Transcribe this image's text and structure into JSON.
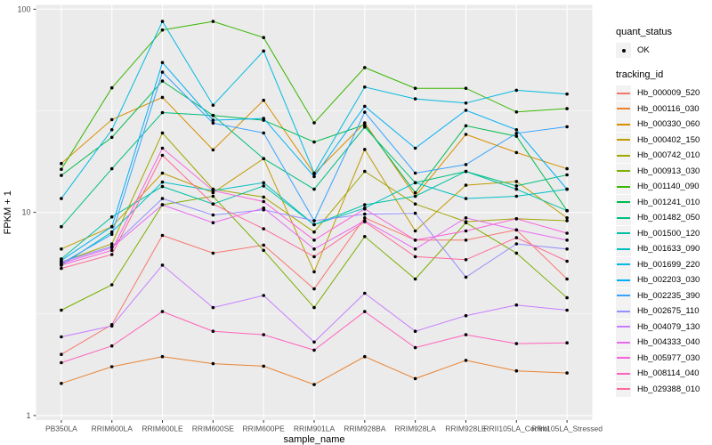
{
  "figure": {
    "background": "#FFFFFF",
    "panel_background": "#EBEBEB",
    "gridline_color": "#FFFFFF",
    "tick_label_color": "#4D4D4D",
    "axis_title_color": "#000000",
    "point_color": "#000000"
  },
  "legend": {
    "quant_status_title": "quant_status",
    "quant_status_items": [
      "OK"
    ],
    "tracking_id_title": "tracking_id"
  },
  "chart_data": {
    "type": "line",
    "title": "",
    "xlabel": "sample_name",
    "ylabel": "FPKM + 1",
    "y_scale": "log10",
    "y_ticks": [
      1,
      10,
      100
    ],
    "y_minor": [
      3.1623,
      31.623
    ],
    "ylim": [
      0.95,
      105
    ],
    "grid": "major+minor",
    "legend_position": "right",
    "point_shape": "filled-circle",
    "categories": [
      "PB350LA",
      "RRIM600LA",
      "RRIM600LE",
      "RRIM600SE",
      "RRIM600PE",
      "RRIM901LA",
      "RRIM928BA",
      "RRIM928LA",
      "RRIM928LE",
      "RRII105LA_Control",
      "RRII105LA_Stressed"
    ],
    "series": [
      {
        "name": "Hb_000009_520",
        "color": "#F8766D",
        "quant_status": "OK",
        "values": [
          2.0,
          2.8,
          7.7,
          6.3,
          6.9,
          4.2,
          9.4,
          7.3,
          7.3,
          8.2,
          4.7
        ]
      },
      {
        "name": "Hb_000116_030",
        "color": "#EA8331",
        "quant_status": "OK",
        "values": [
          1.44,
          1.74,
          1.95,
          1.8,
          1.75,
          1.42,
          1.95,
          1.52,
          1.87,
          1.66,
          1.62
        ]
      },
      {
        "name": "Hb_000330_060",
        "color": "#D89000",
        "quant_status": "OK",
        "values": [
          17.4,
          28.6,
          36.8,
          20.3,
          35.6,
          15.5,
          27.6,
          12.0,
          24.2,
          19.7,
          16.4
        ]
      },
      {
        "name": "Hb_000402_150",
        "color": "#C09B00",
        "quant_status": "OK",
        "values": [
          6.6,
          8.5,
          15.6,
          12.5,
          18.4,
          5.1,
          20.4,
          8.1,
          13.6,
          14.2,
          9.4
        ]
      },
      {
        "name": "Hb_000742_010",
        "color": "#A3A500",
        "quant_status": "OK",
        "values": [
          5.7,
          7.0,
          24.6,
          13.0,
          11.9,
          8.0,
          15.9,
          11.0,
          9.0,
          9.3,
          9.1
        ]
      },
      {
        "name": "Hb_000913_030",
        "color": "#7CAE00",
        "quant_status": "OK",
        "values": [
          3.3,
          4.4,
          10.9,
          12.0,
          6.5,
          3.4,
          7.6,
          4.7,
          8.9,
          6.3,
          3.8
        ]
      },
      {
        "name": "Hb_001140_090",
        "color": "#39B600",
        "quant_status": "OK",
        "values": [
          16.3,
          41.0,
          79.0,
          87.0,
          72.5,
          27.6,
          51.6,
          40.8,
          40.8,
          31.2,
          32.4
        ]
      },
      {
        "name": "Hb_001241_010",
        "color": "#00BB4E",
        "quant_status": "OK",
        "values": [
          15.2,
          23.4,
          44.3,
          30.0,
          28.4,
          22.2,
          27.0,
          12.5,
          26.7,
          23.7,
          10.2
        ]
      },
      {
        "name": "Hb_001482_050",
        "color": "#00BF7D",
        "quant_status": "OK",
        "values": [
          8.5,
          16.4,
          31.0,
          30.0,
          18.4,
          13.0,
          26.3,
          14.0,
          15.9,
          13.5,
          15.3
        ]
      },
      {
        "name": "Hb_001500_120",
        "color": "#00C1A3",
        "quant_status": "OK",
        "values": [
          5.9,
          9.5,
          13.4,
          11.0,
          13.5,
          8.7,
          10.9,
          12.0,
          15.9,
          13.0,
          10.2
        ]
      },
      {
        "name": "Hb_001633_090",
        "color": "#00BFC4",
        "quant_status": "OK",
        "values": [
          5.5,
          8.0,
          14.1,
          12.8,
          14.0,
          8.7,
          10.5,
          14.0,
          11.7,
          12.0,
          13.0
        ]
      },
      {
        "name": "Hb_001699_220",
        "color": "#00BAE0",
        "quant_status": "OK",
        "values": [
          11.7,
          25.5,
          87.0,
          33.7,
          62.3,
          15.6,
          41.4,
          36.2,
          34.5,
          39.9,
          38.2
        ]
      },
      {
        "name": "Hb_002203_030",
        "color": "#00B0F6",
        "quant_status": "OK",
        "values": [
          5.8,
          8.5,
          54.6,
          28.4,
          29.0,
          15.0,
          33.3,
          20.7,
          31.8,
          25.5,
          13.0
        ]
      },
      {
        "name": "Hb_002235_390",
        "color": "#35A2FF",
        "quant_status": "OK",
        "values": [
          5.6,
          7.8,
          49.0,
          27.5,
          24.6,
          9.1,
          31.1,
          15.6,
          17.2,
          24.5,
          26.4
        ]
      },
      {
        "name": "Hb_002675_110",
        "color": "#9590FF",
        "quant_status": "OK",
        "values": [
          5.7,
          6.8,
          11.7,
          9.7,
          10.3,
          9.1,
          9.8,
          9.9,
          4.8,
          7.0,
          6.6
        ]
      },
      {
        "name": "Hb_004079_130",
        "color": "#C77CFF",
        "quant_status": "OK",
        "values": [
          2.44,
          2.76,
          5.5,
          3.4,
          3.9,
          2.3,
          4.0,
          2.6,
          3.1,
          3.5,
          3.3
        ]
      },
      {
        "name": "Hb_004333_040",
        "color": "#E76BF3",
        "quant_status": "OK",
        "values": [
          5.6,
          6.7,
          10.9,
          8.9,
          10.5,
          6.6,
          9.1,
          6.6,
          9.4,
          8.2,
          7.3
        ]
      },
      {
        "name": "Hb_005977_030",
        "color": "#FA62DB",
        "quant_status": "OK",
        "values": [
          5.5,
          6.5,
          20.7,
          12.8,
          11.3,
          7.3,
          10.4,
          7.3,
          8.1,
          9.3,
          7.9
        ]
      },
      {
        "name": "Hb_008114_040",
        "color": "#FF62BC",
        "quant_status": "OK",
        "values": [
          1.82,
          2.2,
          3.25,
          2.6,
          2.5,
          2.1,
          3.25,
          2.16,
          2.5,
          2.26,
          2.28
        ]
      },
      {
        "name": "Hb_029388_010",
        "color": "#FF6A98",
        "quant_status": "OK",
        "values": [
          5.3,
          6.2,
          19.1,
          11.0,
          8.3,
          6.05,
          9.0,
          6.05,
          5.85,
          7.5,
          5.75
        ]
      }
    ]
  }
}
